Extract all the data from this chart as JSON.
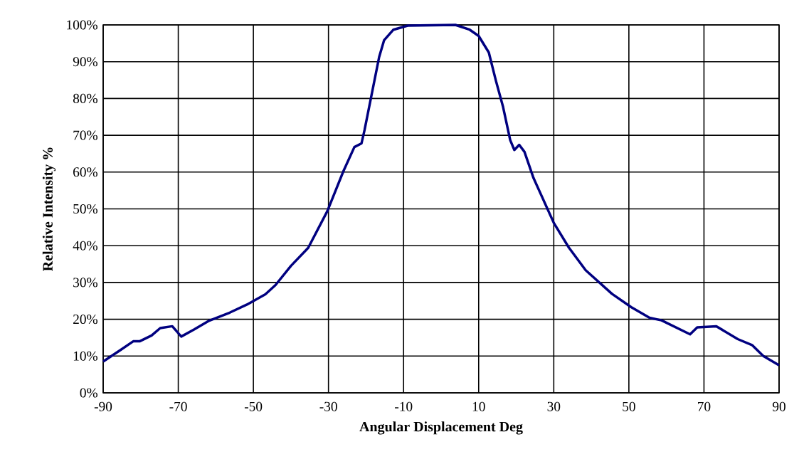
{
  "chart_data": {
    "type": "line",
    "xlabel": "Angular Displacement  Deg",
    "ylabel": "Relative Intensity %",
    "x": [
      -90,
      -85.3,
      -82,
      -80.3,
      -77.1,
      -74.8,
      -71.6,
      -69.2,
      -65.8,
      -62,
      -56.3,
      -51.7,
      -46.8,
      -44.1,
      -40,
      -35.4,
      -30.3,
      -26,
      -23.1,
      -21.2,
      -20.4,
      -18.4,
      -16.5,
      -15.2,
      -12.7,
      -8.9,
      3.8,
      7.6,
      10,
      12.7,
      14.6,
      16.5,
      18.4,
      19.5,
      20.8,
      22.2,
      24.6,
      30,
      34,
      38.5,
      45.5,
      50.6,
      55.5,
      58.7,
      66.3,
      68.2,
      73.3,
      79,
      82.8,
      85.8,
      90
    ],
    "series": [
      {
        "color": "#000080",
        "values": [
          8.5,
          11.7,
          14,
          14,
          15.6,
          17.6,
          18.1,
          15.3,
          17.2,
          19.5,
          21.8,
          24,
          26.8,
          29.3,
          34.5,
          39.4,
          49.4,
          60.3,
          66.8,
          67.8,
          71.4,
          81.6,
          91.3,
          95.8,
          98.7,
          99.8,
          100,
          98.7,
          97,
          92.5,
          84.8,
          77.7,
          68.7,
          66,
          67.4,
          65.5,
          58.4,
          46.2,
          39.5,
          33.3,
          26.9,
          23.3,
          20.4,
          19.7,
          15.9,
          17.8,
          18.1,
          14.6,
          13,
          10,
          7.5
        ]
      }
    ],
    "xlim": [
      -90,
      90
    ],
    "xticks": [
      -90,
      -70,
      -50,
      -30,
      -10,
      10,
      30,
      50,
      70,
      90
    ],
    "ylim": [
      0,
      100
    ],
    "yticks": [
      {
        "value": 0,
        "label": "0%"
      },
      {
        "value": 10,
        "label": "10%"
      },
      {
        "value": 20,
        "label": "20%"
      },
      {
        "value": 30,
        "label": "30%"
      },
      {
        "value": 40,
        "label": "40%"
      },
      {
        "value": 50,
        "label": "50%"
      },
      {
        "value": 60,
        "label": "60%"
      },
      {
        "value": 70,
        "label": "70%"
      },
      {
        "value": 80,
        "label": "80%"
      },
      {
        "value": 90,
        "label": "90%"
      },
      {
        "value": 100,
        "label": "100%"
      }
    ],
    "grid": true,
    "marker": "none",
    "line_style": "solid"
  }
}
